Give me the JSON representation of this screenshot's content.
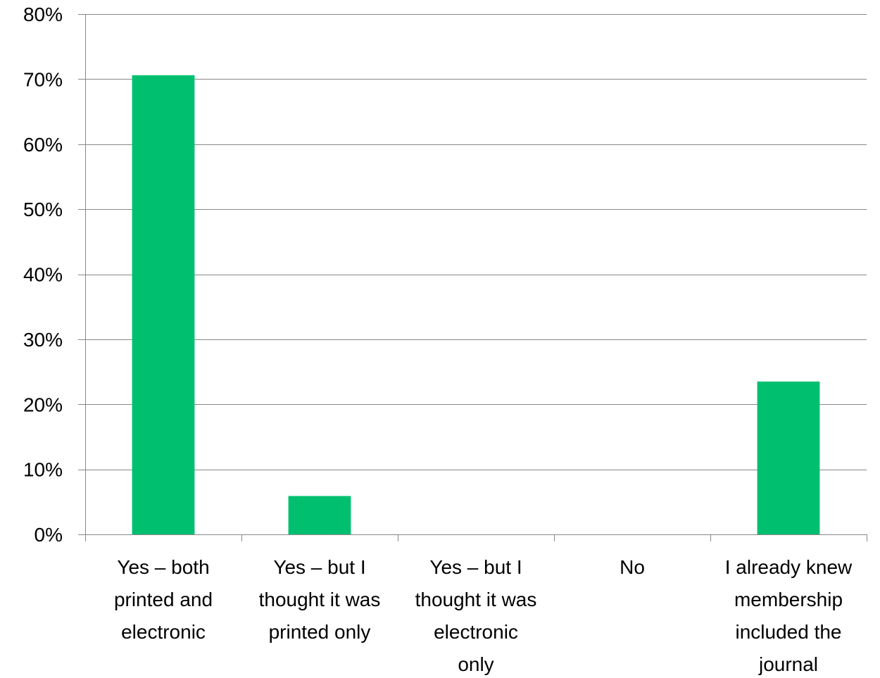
{
  "chart_data": {
    "type": "bar",
    "categories": [
      [
        "Yes – both",
        "printed and",
        "electronic"
      ],
      [
        "Yes – but I",
        "thought it was",
        "printed only"
      ],
      [
        "Yes – but I",
        "thought it was",
        "electronic",
        "only"
      ],
      [
        "No"
      ],
      [
        "I already knew",
        "membership",
        "included the",
        "journal"
      ]
    ],
    "values": [
      70.6,
      5.9,
      0,
      0,
      23.5
    ],
    "ylim": [
      0,
      80
    ],
    "yticks": [
      0,
      10,
      20,
      30,
      40,
      50,
      60,
      70,
      80
    ],
    "ytick_labels": [
      "0%",
      "10%",
      "20%",
      "30%",
      "40%",
      "50%",
      "60%",
      "70%",
      "80%"
    ],
    "grid": true,
    "legend": "none",
    "bar_color": "#00c070",
    "gridline_color": "#888888",
    "axis_color": "#888888"
  }
}
